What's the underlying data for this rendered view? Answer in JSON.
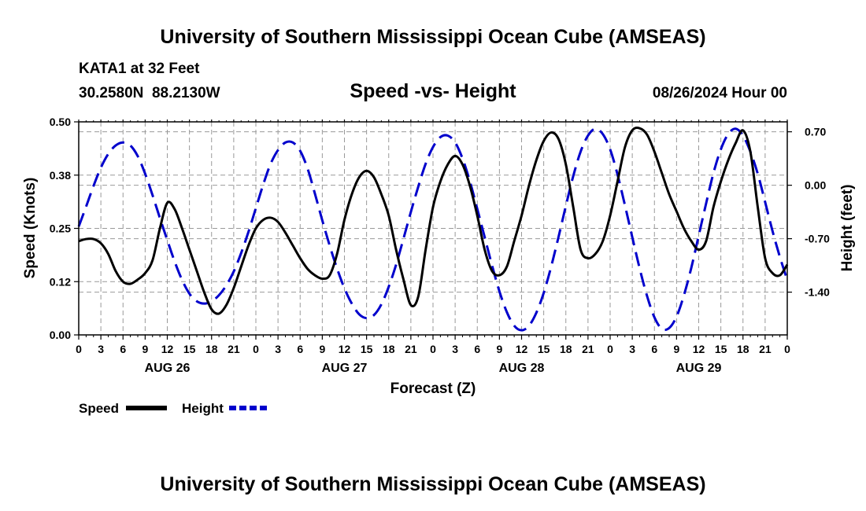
{
  "header": {
    "title": "University of Southern Mississippi Ocean Cube (AMSEAS)",
    "station": "KATA1 at 32 Feet",
    "coords": "30.2580N  88.2130W",
    "subtitle": "Speed -vs- Height",
    "datetime": "08/26/2024 Hour 00"
  },
  "footer": {
    "title": "University of Southern Mississippi Ocean Cube (AMSEAS)"
  },
  "colors": {
    "speed": "#000000",
    "height": "#0000cc",
    "grid": "#999999"
  },
  "chart_data": {
    "type": "line",
    "xlabel": "Forecast (Z)",
    "ylabel": "Speed (Knots)",
    "y2label": "Height (feet)",
    "xlim": [
      0,
      96
    ],
    "ylim": [
      0,
      0.5
    ],
    "y2lim": [
      -1.96,
      0.83
    ],
    "y_ticks": [
      "0.00",
      "0.12",
      "0.25",
      "0.38",
      "0.50"
    ],
    "y_tick_values": [
      0,
      0.125,
      0.25,
      0.375,
      0.5
    ],
    "y2_ticks": [
      "-1.40",
      "-0.70",
      "0.00",
      "0.70"
    ],
    "y2_tick_values": [
      -1.4,
      -0.7,
      0.0,
      0.7
    ],
    "x_tick_labels": [
      "0",
      "3",
      "6",
      "9",
      "12",
      "15",
      "18",
      "21",
      "0",
      "3",
      "6",
      "9",
      "12",
      "15",
      "18",
      "21",
      "0",
      "3",
      "6",
      "9",
      "12",
      "15",
      "18",
      "21",
      "0",
      "3",
      "6",
      "9",
      "12",
      "15",
      "18",
      "21",
      "0"
    ],
    "x_tick_values": [
      0,
      3,
      6,
      9,
      12,
      15,
      18,
      21,
      24,
      27,
      30,
      33,
      36,
      39,
      42,
      45,
      48,
      51,
      54,
      57,
      60,
      63,
      66,
      69,
      72,
      75,
      78,
      81,
      84,
      87,
      90,
      93,
      96
    ],
    "day_labels": [
      "AUG 26",
      "AUG 27",
      "AUG 28",
      "AUG 29"
    ],
    "day_label_positions": [
      12,
      36,
      60,
      84
    ],
    "series": [
      {
        "name": "Speed",
        "axis": "left",
        "style": "solid",
        "x": [
          0,
          1,
          2,
          3,
          4,
          5,
          6,
          7,
          8,
          9,
          10,
          11,
          12,
          13,
          14,
          15,
          16,
          17,
          18,
          19,
          20,
          21,
          22,
          23,
          24,
          25,
          26,
          27,
          28,
          29,
          30,
          31,
          32,
          33,
          34,
          35,
          36,
          37,
          38,
          39,
          40,
          41,
          42,
          43,
          44,
          45,
          46,
          47,
          48,
          49,
          50,
          51,
          52,
          53,
          54,
          55,
          56,
          57,
          58,
          59,
          60,
          61,
          62,
          63,
          64,
          65,
          66,
          67,
          68,
          69,
          70,
          71,
          72,
          73,
          74,
          75,
          76,
          77,
          78,
          79,
          80,
          81,
          82,
          83,
          84,
          85,
          86,
          87,
          88,
          89,
          90,
          91,
          92,
          93,
          94,
          95,
          96
        ],
        "values": [
          0.22,
          0.225,
          0.225,
          0.215,
          0.19,
          0.15,
          0.125,
          0.12,
          0.13,
          0.145,
          0.175,
          0.25,
          0.31,
          0.295,
          0.25,
          0.2,
          0.15,
          0.1,
          0.06,
          0.05,
          0.07,
          0.11,
          0.16,
          0.21,
          0.25,
          0.27,
          0.275,
          0.265,
          0.24,
          0.21,
          0.18,
          0.155,
          0.14,
          0.132,
          0.14,
          0.19,
          0.27,
          0.33,
          0.37,
          0.385,
          0.37,
          0.33,
          0.28,
          0.2,
          0.13,
          0.07,
          0.09,
          0.2,
          0.3,
          0.36,
          0.4,
          0.42,
          0.4,
          0.35,
          0.28,
          0.2,
          0.15,
          0.14,
          0.16,
          0.22,
          0.28,
          0.35,
          0.41,
          0.455,
          0.475,
          0.46,
          0.4,
          0.3,
          0.2,
          0.18,
          0.19,
          0.22,
          0.28,
          0.36,
          0.44,
          0.48,
          0.485,
          0.47,
          0.43,
          0.38,
          0.33,
          0.29,
          0.25,
          0.22,
          0.2,
          0.22,
          0.3,
          0.36,
          0.41,
          0.45,
          0.48,
          0.43,
          0.3,
          0.18,
          0.145,
          0.14,
          0.165
        ]
      },
      {
        "name": "Height",
        "axis": "right",
        "style": "dashed",
        "x": [
          0,
          1,
          2,
          3,
          4,
          5,
          6,
          7,
          8,
          9,
          10,
          11,
          12,
          13,
          14,
          15,
          16,
          17,
          18,
          19,
          20,
          21,
          22,
          23,
          24,
          25,
          26,
          27,
          28,
          29,
          30,
          31,
          32,
          33,
          34,
          35,
          36,
          37,
          38,
          39,
          40,
          41,
          42,
          43,
          44,
          45,
          46,
          47,
          48,
          49,
          50,
          51,
          52,
          53,
          54,
          55,
          56,
          57,
          58,
          59,
          60,
          61,
          62,
          63,
          64,
          65,
          66,
          67,
          68,
          69,
          70,
          71,
          72,
          73,
          74,
          75,
          76,
          77,
          78,
          79,
          80,
          81,
          82,
          83,
          84,
          85,
          86,
          87,
          88,
          89,
          90,
          91,
          92,
          93,
          94,
          95,
          96
        ],
        "values": [
          -0.54,
          -0.28,
          -0.01,
          0.23,
          0.41,
          0.52,
          0.56,
          0.52,
          0.38,
          0.15,
          -0.13,
          -0.43,
          -0.72,
          -1,
          -1.24,
          -1.42,
          -1.52,
          -1.55,
          -1.52,
          -1.44,
          -1.31,
          -1.13,
          -0.89,
          -0.61,
          -0.3,
          0.01,
          0.28,
          0.46,
          0.56,
          0.56,
          0.45,
          0.22,
          -0.11,
          -0.46,
          -0.79,
          -1.09,
          -1.35,
          -1.55,
          -1.69,
          -1.74,
          -1.7,
          -1.56,
          -1.33,
          -1.04,
          -0.7,
          -0.35,
          -0.02,
          0.28,
          0.5,
          0.63,
          0.65,
          0.56,
          0.35,
          0.05,
          -0.31,
          -0.68,
          -1.05,
          -1.39,
          -1.66,
          -1.84,
          -1.9,
          -1.84,
          -1.67,
          -1.41,
          -1.07,
          -0.68,
          -0.27,
          0.12,
          0.44,
          0.65,
          0.74,
          0.67,
          0.47,
          0.14,
          -0.26,
          -0.68,
          -1.09,
          -1.45,
          -1.73,
          -1.88,
          -1.87,
          -1.72,
          -1.44,
          -1.08,
          -0.66,
          -0.24,
          0.16,
          0.47,
          0.67,
          0.74,
          0.65,
          0.44,
          0.15,
          -0.22,
          -0.6,
          -0.94,
          -1.24
        ]
      }
    ],
    "legend": [
      {
        "label": "Speed",
        "style": "solid"
      },
      {
        "label": "Height",
        "style": "dashed"
      }
    ]
  }
}
